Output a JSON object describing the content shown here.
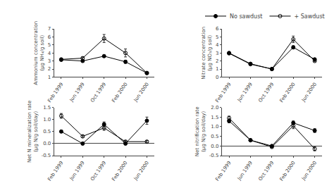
{
  "chart_data": [
    {
      "type": "line",
      "categories": [
        "Feb 1999",
        "Jun 1999",
        "Oct 1999",
        "Feb 2000",
        "Jun 2000"
      ],
      "ylabel": "Ammonium concentration\n(μg NH₄/g soil)",
      "ylim": [
        1,
        7
      ],
      "yticks": [
        1,
        2,
        3,
        4,
        5,
        6,
        7
      ],
      "grid": false,
      "legend": "upper right",
      "series": [
        {
          "name": "No sawdust",
          "color": "#000000",
          "marker": "circle",
          "line_style": "solid",
          "values": [
            3.15,
            3.0,
            3.6,
            2.9,
            1.5
          ],
          "error": [
            0.1,
            0.1,
            0.15,
            0.2,
            0.1
          ]
        },
        {
          "name": "+ Sawdust",
          "color": "#000000",
          "marker": "circle-open",
          "line_style": "solid",
          "values": [
            3.2,
            3.35,
            5.8,
            4.0,
            1.5
          ],
          "error": [
            0.1,
            0.15,
            0.5,
            0.5,
            0.1
          ]
        }
      ]
    },
    {
      "type": "line",
      "categories": [
        "Feb 1999",
        "Jun 1999",
        "Oct 1999",
        "Feb 2000",
        "Jun 2000"
      ],
      "ylabel": "Nitrate concentration\n(μg NO₃/g soil)",
      "ylim": [
        0,
        6
      ],
      "yticks": [
        0,
        1,
        2,
        3,
        4,
        5,
        6
      ],
      "grid": false,
      "series": [
        {
          "name": "No sawdust",
          "color": "#000000",
          "marker": "circle",
          "line_style": "solid",
          "values": [
            3.0,
            1.65,
            1.0,
            3.7,
            2.2
          ],
          "error": [
            0.1,
            0.1,
            0.05,
            0.2,
            0.1
          ]
        },
        {
          "name": "+ Sawdust",
          "color": "#000000",
          "marker": "circle-open",
          "line_style": "solid",
          "values": [
            2.95,
            1.6,
            1.0,
            4.7,
            2.0
          ],
          "error": [
            0.1,
            0.1,
            0.05,
            0.4,
            0.1
          ]
        }
      ]
    },
    {
      "type": "line",
      "categories": [
        "Feb 1999",
        "Jun 1999",
        "Oct 1999",
        "Feb 2000",
        "Jun 2000"
      ],
      "ylabel": "Net N mineralization rate\n(μg N/g soil/day)",
      "ylim": [
        -0.5,
        1.5
      ],
      "yticks": [
        -0.5,
        {
          "value": 0,
          "label": "0.0"
        },
        0.5,
        {
          "value": 1,
          "label": "1.0"
        },
        1.5
      ],
      "grid": false,
      "series": [
        {
          "name": "No sawdust",
          "color": "#000000",
          "marker": "circle",
          "line_style": "solid",
          "values": [
            0.5,
            0.0,
            0.8,
            0.0,
            0.95
          ],
          "error": [
            0.05,
            0.05,
            0.1,
            0.05,
            0.15
          ]
        },
        {
          "name": "+ Sawdust",
          "color": "#000000",
          "marker": "circle-open",
          "line_style": "solid",
          "values": [
            1.15,
            0.3,
            0.65,
            0.08,
            0.08
          ],
          "error": [
            0.1,
            0.05,
            0.1,
            0.05,
            0.05
          ]
        }
      ]
    },
    {
      "type": "line",
      "categories": [
        "Feb 1999",
        "Jun 1999",
        "Oct 1999",
        "Feb 2000",
        "Jun 2000"
      ],
      "ylabel": "Net nitrification rate\n(μg N/g soil/day)",
      "ylim": [
        -0.5,
        2.0
      ],
      "yticks": [
        -0.5,
        {
          "value": 0,
          "label": "0.0"
        },
        0.5,
        {
          "value": 1,
          "label": "1.0"
        },
        1.5,
        {
          "value": 2,
          "label": "2.0"
        }
      ],
      "grid": false,
      "series": [
        {
          "name": "No sawdust",
          "color": "#000000",
          "marker": "circle",
          "line_style": "solid",
          "values": [
            1.3,
            0.3,
            0.0,
            1.2,
            0.8
          ],
          "error": [
            0.1,
            0.05,
            0.05,
            0.1,
            0.1
          ]
        },
        {
          "name": "+ Sawdust",
          "color": "#000000",
          "marker": "circle-open",
          "line_style": "solid",
          "values": [
            1.45,
            0.3,
            -0.05,
            1.05,
            -0.15
          ],
          "error": [
            0.1,
            0.05,
            0.05,
            0.15,
            0.1
          ]
        }
      ]
    }
  ]
}
